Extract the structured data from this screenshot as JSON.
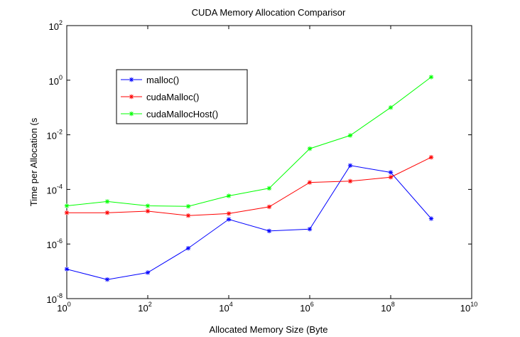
{
  "chart_data": {
    "type": "line",
    "title": "CUDA Memory Allocation Comparisor",
    "xlabel": "Allocated Memory Size (Byte",
    "ylabel": "Time per Allocation (s",
    "xscale": "log",
    "yscale": "log",
    "xlim": [
      1,
      10000000000
    ],
    "ylim": [
      1e-08,
      100
    ],
    "grid": false,
    "legend": "top-left",
    "x_ticks": [
      {
        "value": 1,
        "base": "10",
        "exp": "0"
      },
      {
        "value": 100,
        "base": "10",
        "exp": "2"
      },
      {
        "value": 10000,
        "base": "10",
        "exp": "4"
      },
      {
        "value": 1000000,
        "base": "10",
        "exp": "6"
      },
      {
        "value": 100000000,
        "base": "10",
        "exp": "8"
      },
      {
        "value": 10000000000,
        "base": "10",
        "exp": "10"
      }
    ],
    "y_ticks": [
      {
        "value": 1e-08,
        "base": "10",
        "exp": "-8"
      },
      {
        "value": 1e-06,
        "base": "10",
        "exp": "-6"
      },
      {
        "value": 0.0001,
        "base": "10",
        "exp": "-4"
      },
      {
        "value": 0.01,
        "base": "10",
        "exp": "-2"
      },
      {
        "value": 1,
        "base": "10",
        "exp": "0"
      },
      {
        "value": 100,
        "base": "10",
        "exp": "2"
      }
    ],
    "x": [
      1,
      10,
      100,
      1000,
      10000,
      100000,
      1000000,
      10000000,
      100000000,
      1000000000
    ],
    "series": [
      {
        "name": "malloc()",
        "color": "#0000ff",
        "values": [
          1.2e-07,
          5e-08,
          9e-08,
          7e-07,
          8e-06,
          3e-06,
          3.5e-06,
          0.00075,
          0.00042,
          8.5e-06
        ]
      },
      {
        "name": "cudaMalloc()",
        "color": "#ff0000",
        "values": [
          1.4e-05,
          1.4e-05,
          1.6e-05,
          1.1e-05,
          1.3e-05,
          2.3e-05,
          0.00018,
          0.0002,
          0.00028,
          0.0015
        ]
      },
      {
        "name": "cudaMallocHost()",
        "color": "#00ff00",
        "values": [
          2.5e-05,
          3.6e-05,
          2.5e-05,
          2.4e-05,
          5.8e-05,
          0.00011,
          0.0031,
          0.0095,
          0.1,
          1.3
        ]
      }
    ]
  }
}
